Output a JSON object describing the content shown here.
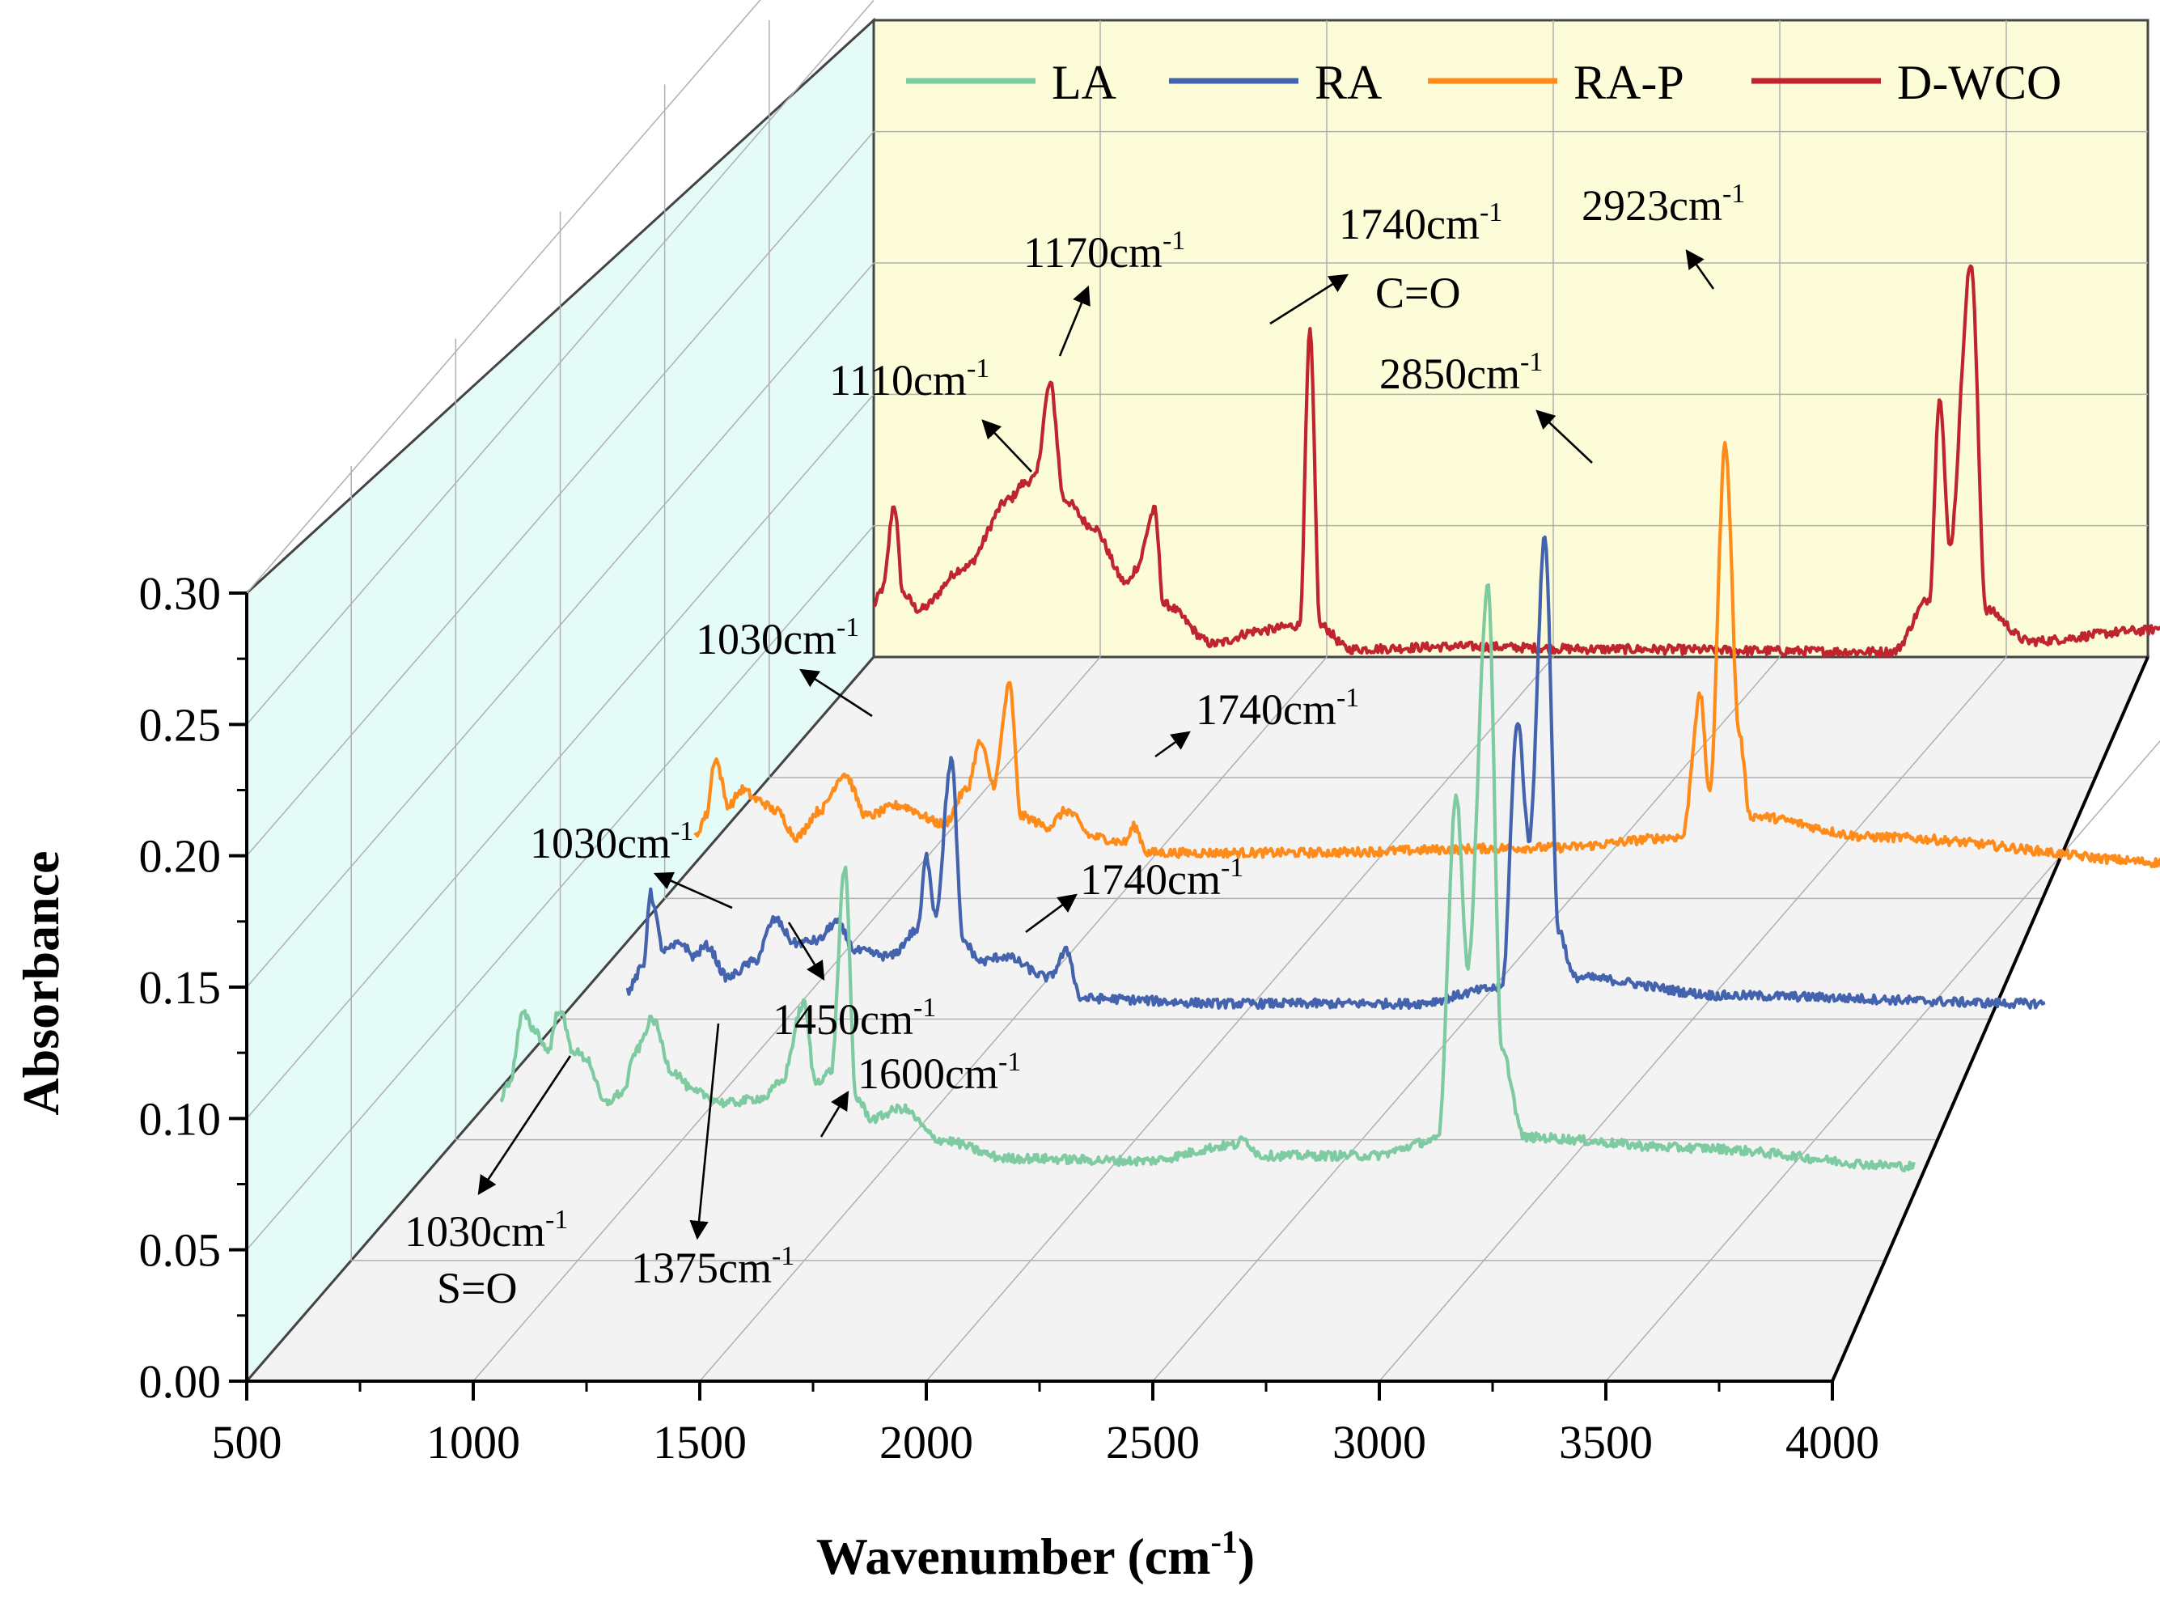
{
  "chart_data": {
    "type": "line",
    "subtype": "3d-waterfall",
    "xlabel": "Wavenumber (cm",
    "xlabel_sup": "-1",
    "xlabel_close": ")",
    "ylabel": "Absorbance",
    "xlim": [
      500,
      4000
    ],
    "ylim": [
      0.0,
      0.3
    ],
    "x_ticks": [
      "500",
      "1000",
      "1500",
      "2000",
      "2500",
      "3000",
      "3500",
      "4000"
    ],
    "y_ticks": [
      "0.00",
      "0.05",
      "0.10",
      "0.15",
      "0.20",
      "0.25",
      "0.30"
    ],
    "legend": [
      "LA",
      "RA",
      "RA-P",
      "D-WCO"
    ],
    "series": [
      {
        "name": "LA",
        "color": "#7ecba1",
        "x_range": [
          880,
          4000
        ],
        "peaks": [
          {
            "x": 880,
            "y": 0.072
          },
          {
            "x": 900,
            "y": 0.078
          },
          {
            "x": 930,
            "y": 0.104
          },
          {
            "x": 955,
            "y": 0.098
          },
          {
            "x": 985,
            "y": 0.09
          },
          {
            "x": 1010,
            "y": 0.106
          },
          {
            "x": 1040,
            "y": 0.09
          },
          {
            "x": 1070,
            "y": 0.087
          },
          {
            "x": 1110,
            "y": 0.07
          },
          {
            "x": 1150,
            "y": 0.074
          },
          {
            "x": 1180,
            "y": 0.09
          },
          {
            "x": 1215,
            "y": 0.102
          },
          {
            "x": 1260,
            "y": 0.082
          },
          {
            "x": 1310,
            "y": 0.074
          },
          {
            "x": 1380,
            "y": 0.07
          },
          {
            "x": 1460,
            "y": 0.072
          },
          {
            "x": 1500,
            "y": 0.078
          },
          {
            "x": 1550,
            "y": 0.108
          },
          {
            "x": 1575,
            "y": 0.078
          },
          {
            "x": 1610,
            "y": 0.082
          },
          {
            "x": 1640,
            "y": 0.16
          },
          {
            "x": 1665,
            "y": 0.072
          },
          {
            "x": 1700,
            "y": 0.064
          },
          {
            "x": 1765,
            "y": 0.068
          },
          {
            "x": 1850,
            "y": 0.056
          },
          {
            "x": 2000,
            "y": 0.049
          },
          {
            "x": 2300,
            "y": 0.048
          },
          {
            "x": 2500,
            "y": 0.054
          },
          {
            "x": 2520,
            "y": 0.056
          },
          {
            "x": 2560,
            "y": 0.05
          },
          {
            "x": 2800,
            "y": 0.05
          },
          {
            "x": 2950,
            "y": 0.056
          },
          {
            "x": 2990,
            "y": 0.188
          },
          {
            "x": 3015,
            "y": 0.122
          },
          {
            "x": 3060,
            "y": 0.268
          },
          {
            "x": 3090,
            "y": 0.09
          },
          {
            "x": 3140,
            "y": 0.057
          },
          {
            "x": 3500,
            "y": 0.053
          },
          {
            "x": 4000,
            "y": 0.046
          }
        ]
      },
      {
        "name": "RA",
        "color": "#4463ae",
        "x_range": [
          870,
          4000
        ],
        "peaks": [
          {
            "x": 870,
            "y": 0.055
          },
          {
            "x": 905,
            "y": 0.064
          },
          {
            "x": 920,
            "y": 0.092
          },
          {
            "x": 950,
            "y": 0.07
          },
          {
            "x": 990,
            "y": 0.073
          },
          {
            "x": 1015,
            "y": 0.068
          },
          {
            "x": 1045,
            "y": 0.072
          },
          {
            "x": 1090,
            "y": 0.06
          },
          {
            "x": 1150,
            "y": 0.066
          },
          {
            "x": 1195,
            "y": 0.082
          },
          {
            "x": 1240,
            "y": 0.073
          },
          {
            "x": 1290,
            "y": 0.074
          },
          {
            "x": 1330,
            "y": 0.081
          },
          {
            "x": 1375,
            "y": 0.07
          },
          {
            "x": 1450,
            "y": 0.068
          },
          {
            "x": 1510,
            "y": 0.078
          },
          {
            "x": 1530,
            "y": 0.106
          },
          {
            "x": 1550,
            "y": 0.084
          },
          {
            "x": 1585,
            "y": 0.143
          },
          {
            "x": 1610,
            "y": 0.074
          },
          {
            "x": 1650,
            "y": 0.066
          },
          {
            "x": 1700,
            "y": 0.068
          },
          {
            "x": 1800,
            "y": 0.06
          },
          {
            "x": 1840,
            "y": 0.07
          },
          {
            "x": 1870,
            "y": 0.052
          },
          {
            "x": 2200,
            "y": 0.05
          },
          {
            "x": 2600,
            "y": 0.05
          },
          {
            "x": 2800,
            "y": 0.056
          },
          {
            "x": 2835,
            "y": 0.158
          },
          {
            "x": 2860,
            "y": 0.112
          },
          {
            "x": 2895,
            "y": 0.228
          },
          {
            "x": 2925,
            "y": 0.078
          },
          {
            "x": 2960,
            "y": 0.06
          },
          {
            "x": 3300,
            "y": 0.053
          },
          {
            "x": 4000,
            "y": 0.05
          }
        ]
      },
      {
        "name": "RA-P",
        "color": "#ff8c1a",
        "x_range": [
          700,
          4000
        ],
        "peaks": [
          {
            "x": 700,
            "y": 0.05
          },
          {
            "x": 725,
            "y": 0.058
          },
          {
            "x": 745,
            "y": 0.08
          },
          {
            "x": 775,
            "y": 0.062
          },
          {
            "x": 805,
            "y": 0.068
          },
          {
            "x": 840,
            "y": 0.064
          },
          {
            "x": 880,
            "y": 0.06
          },
          {
            "x": 925,
            "y": 0.05
          },
          {
            "x": 975,
            "y": 0.06
          },
          {
            "x": 1030,
            "y": 0.074
          },
          {
            "x": 1080,
            "y": 0.058
          },
          {
            "x": 1150,
            "y": 0.062
          },
          {
            "x": 1250,
            "y": 0.055
          },
          {
            "x": 1300,
            "y": 0.068
          },
          {
            "x": 1330,
            "y": 0.086
          },
          {
            "x": 1360,
            "y": 0.07
          },
          {
            "x": 1395,
            "y": 0.108
          },
          {
            "x": 1420,
            "y": 0.058
          },
          {
            "x": 1480,
            "y": 0.054
          },
          {
            "x": 1520,
            "y": 0.06
          },
          {
            "x": 1580,
            "y": 0.05
          },
          {
            "x": 1650,
            "y": 0.048
          },
          {
            "x": 1670,
            "y": 0.054
          },
          {
            "x": 1700,
            "y": 0.044
          },
          {
            "x": 2000,
            "y": 0.044
          },
          {
            "x": 2600,
            "y": 0.046
          },
          {
            "x": 2880,
            "y": 0.05
          },
          {
            "x": 2920,
            "y": 0.104
          },
          {
            "x": 2940,
            "y": 0.066
          },
          {
            "x": 2975,
            "y": 0.2
          },
          {
            "x": 3005,
            "y": 0.09
          },
          {
            "x": 3030,
            "y": 0.058
          },
          {
            "x": 3300,
            "y": 0.05
          },
          {
            "x": 4000,
            "y": 0.04
          }
        ]
      },
      {
        "name": "D-WCO",
        "color": "#c0242e",
        "x_range": [
          500,
          4000
        ],
        "peaks": [
          {
            "x": 500,
            "y": 0.02
          },
          {
            "x": 520,
            "y": 0.026
          },
          {
            "x": 545,
            "y": 0.058
          },
          {
            "x": 565,
            "y": 0.024
          },
          {
            "x": 600,
            "y": 0.018
          },
          {
            "x": 700,
            "y": 0.034
          },
          {
            "x": 800,
            "y": 0.06
          },
          {
            "x": 830,
            "y": 0.066
          },
          {
            "x": 855,
            "y": 0.068
          },
          {
            "x": 890,
            "y": 0.104
          },
          {
            "x": 920,
            "y": 0.06
          },
          {
            "x": 980,
            "y": 0.05
          },
          {
            "x": 1060,
            "y": 0.028
          },
          {
            "x": 1080,
            "y": 0.034
          },
          {
            "x": 1120,
            "y": 0.056
          },
          {
            "x": 1140,
            "y": 0.02
          },
          {
            "x": 1250,
            "y": 0.005
          },
          {
            "x": 1350,
            "y": 0.01
          },
          {
            "x": 1440,
            "y": 0.012
          },
          {
            "x": 1463,
            "y": 0.124
          },
          {
            "x": 1485,
            "y": 0.012
          },
          {
            "x": 1550,
            "y": 0.003
          },
          {
            "x": 1800,
            "y": 0.004
          },
          {
            "x": 2100,
            "y": 0.003
          },
          {
            "x": 2750,
            "y": 0.002
          },
          {
            "x": 2830,
            "y": 0.022
          },
          {
            "x": 2853,
            "y": 0.1
          },
          {
            "x": 2875,
            "y": 0.042
          },
          {
            "x": 2922,
            "y": 0.15
          },
          {
            "x": 2955,
            "y": 0.018
          },
          {
            "x": 3050,
            "y": 0.006
          },
          {
            "x": 3300,
            "y": 0.01
          },
          {
            "x": 3420,
            "y": 0.015
          },
          {
            "x": 3600,
            "y": 0.004
          },
          {
            "x": 4000,
            "y": 0.002
          }
        ]
      }
    ],
    "annotations": {
      "LA": [
        {
          "text": "1030cm",
          "sup": "-1",
          "line2": "S=O"
        },
        {
          "text": "1375cm",
          "sup": "-1"
        },
        {
          "text": "1600cm",
          "sup": "-1"
        }
      ],
      "RA": [
        {
          "text": "1030cm",
          "sup": "-1"
        },
        {
          "text": "1450cm",
          "sup": "-1"
        },
        {
          "text": "1740cm",
          "sup": "-1"
        }
      ],
      "RA-P": [
        {
          "text": "1030cm",
          "sup": "-1"
        },
        {
          "text": "1740cm",
          "sup": "-1"
        }
      ],
      "D-WCO": [
        {
          "text": "1110cm",
          "sup": "-1"
        },
        {
          "text": "1170cm",
          "sup": "-1"
        },
        {
          "text": "1740cm",
          "sup": "-1",
          "line2": "C=O"
        },
        {
          "text": "2850cm",
          "sup": "-1"
        },
        {
          "text": "2923cm",
          "sup": "-1"
        }
      ]
    }
  }
}
